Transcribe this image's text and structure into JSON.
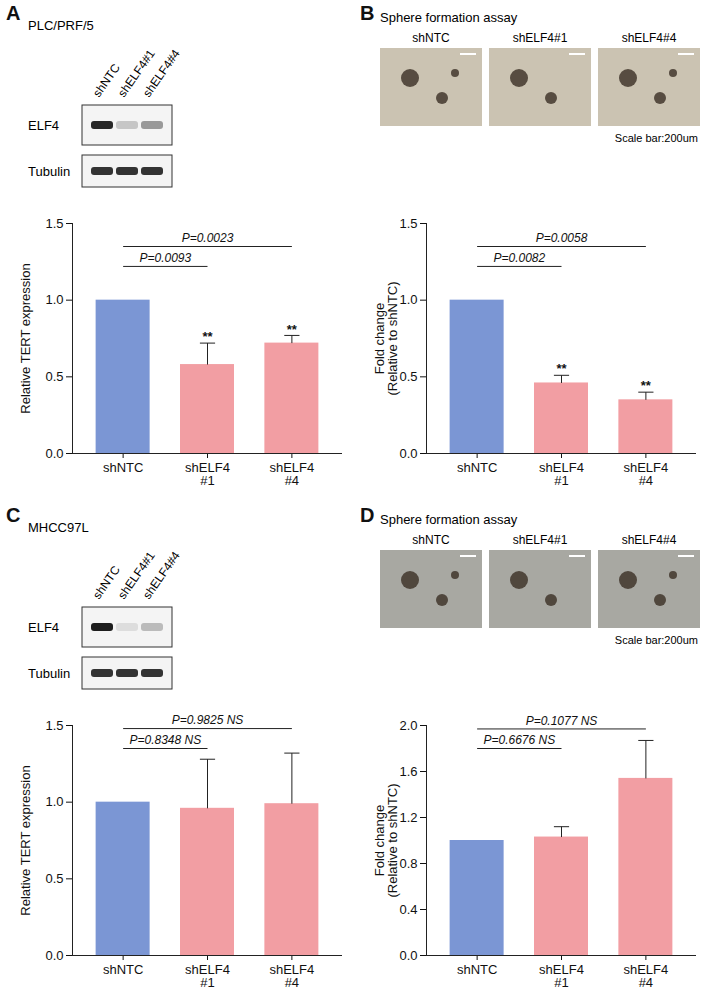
{
  "chart_data": [
    {
      "type": "bar",
      "panel": "A",
      "blot": {
        "cell_line": "PLC/PRF/5",
        "lanes": [
          "shNTC",
          "shELF4#1",
          "shELF4#4"
        ],
        "rows": [
          {
            "label": "ELF4",
            "band_intensity": [
              0.9,
              0.2,
              0.4
            ]
          },
          {
            "label": "Tubulin",
            "band_intensity": [
              0.85,
              0.85,
              0.85
            ]
          }
        ]
      },
      "categories": [
        "shNTC",
        "shELF4\n#1",
        "shELF4\n#4"
      ],
      "values": [
        1.0,
        0.58,
        0.72
      ],
      "errors": [
        null,
        0.14,
        0.05
      ],
      "colors": [
        "#7b96d4",
        "#f29ea3",
        "#f29ea3"
      ],
      "significance": [
        null,
        "**",
        "**"
      ],
      "ylabel": "Relative TERT expression",
      "ylim": [
        0,
        1.5
      ],
      "yticks": [
        {
          "value": 0,
          "label": "0.0"
        },
        {
          "value": 0.5,
          "label": "0.5"
        },
        {
          "value": 1,
          "label": "1.0"
        },
        {
          "value": 1.5,
          "label": "1.5"
        }
      ],
      "annotations": [
        {
          "from": 0,
          "to": 1,
          "y": 1.22,
          "label": "P=0.0093"
        },
        {
          "from": 0,
          "to": 2,
          "y": 1.35,
          "label": "P=0.0023"
        }
      ]
    },
    {
      "type": "bar",
      "panel": "B",
      "images": {
        "title": "Sphere formation assay",
        "labels": [
          "shNTC",
          "shELF4#1",
          "shELF4#4"
        ],
        "scale_bar": "Scale bar:200um",
        "background": "#cbc3b2"
      },
      "categories": [
        "shNTC",
        "shELF4\n#1",
        "shELF4\n#4"
      ],
      "values": [
        1.0,
        0.46,
        0.35
      ],
      "errors": [
        null,
        0.05,
        0.05
      ],
      "colors": [
        "#7b96d4",
        "#f29ea3",
        "#f29ea3"
      ],
      "significance": [
        null,
        "**",
        "**"
      ],
      "ylabel": "Fold change\n(Relative to shNTC)",
      "ylim": [
        0,
        1.5
      ],
      "yticks": [
        {
          "value": 0,
          "label": "0.0"
        },
        {
          "value": 0.5,
          "label": "0.5"
        },
        {
          "value": 1,
          "label": "1.0"
        },
        {
          "value": 1.5,
          "label": "1.5"
        }
      ],
      "annotations": [
        {
          "from": 0,
          "to": 1,
          "y": 1.22,
          "label": "P=0.0082"
        },
        {
          "from": 0,
          "to": 2,
          "y": 1.35,
          "label": "P=0.0058"
        }
      ]
    },
    {
      "type": "bar",
      "panel": "C",
      "blot": {
        "cell_line": "MHCC97L",
        "lanes": [
          "shNTC",
          "shELF4#1",
          "shELF4#4"
        ],
        "rows": [
          {
            "label": "ELF4",
            "band_intensity": [
              0.95,
              0.1,
              0.25
            ]
          },
          {
            "label": "Tubulin",
            "band_intensity": [
              0.85,
              0.85,
              0.85
            ]
          }
        ]
      },
      "categories": [
        "shNTC",
        "shELF4\n#1",
        "shELF4\n#4"
      ],
      "values": [
        1.0,
        0.96,
        0.99
      ],
      "errors": [
        null,
        0.32,
        0.33
      ],
      "colors": [
        "#7b96d4",
        "#f29ea3",
        "#f29ea3"
      ],
      "ylabel": "Relative TERT expression",
      "ylim": [
        0,
        1.5
      ],
      "yticks": [
        {
          "value": 0,
          "label": "0.0"
        },
        {
          "value": 0.5,
          "label": "0.5"
        },
        {
          "value": 1,
          "label": "1.0"
        },
        {
          "value": 1.5,
          "label": "1.5"
        }
      ],
      "annotations": [
        {
          "from": 0,
          "to": 1,
          "y": 1.35,
          "label": "P=0.8348 NS"
        },
        {
          "from": 0,
          "to": 2,
          "y": 1.48,
          "label": "P=0.9825 NS"
        }
      ]
    },
    {
      "type": "bar",
      "panel": "D",
      "images": {
        "title": "Sphere formation assay",
        "labels": [
          "shNTC",
          "shELF4#1",
          "shELF4#4"
        ],
        "scale_bar": "Scale bar:200um",
        "background": "#a8a8a2"
      },
      "categories": [
        "shNTC",
        "shELF4\n#1",
        "shELF4\n#4"
      ],
      "values": [
        1.0,
        1.03,
        1.54
      ],
      "errors": [
        null,
        0.09,
        0.33
      ],
      "colors": [
        "#7b96d4",
        "#f29ea3",
        "#f29ea3"
      ],
      "ylabel": "Fold change\n(Relative to shNTC)",
      "ylim": [
        0,
        2.0
      ],
      "yticks": [
        {
          "value": 0,
          "label": "0.0"
        },
        {
          "value": 0.4,
          "label": "0.4"
        },
        {
          "value": 0.8,
          "label": "0.8"
        },
        {
          "value": 1.2,
          "label": "1.2"
        },
        {
          "value": 1.6,
          "label": "1.6"
        },
        {
          "value": 2.0,
          "label": "2.0"
        }
      ],
      "annotations": [
        {
          "from": 0,
          "to": 1,
          "y": 1.8,
          "label": "P=0.6676 NS"
        },
        {
          "from": 0,
          "to": 2,
          "y": 1.97,
          "label": "P=0.1077 NS"
        }
      ]
    }
  ]
}
